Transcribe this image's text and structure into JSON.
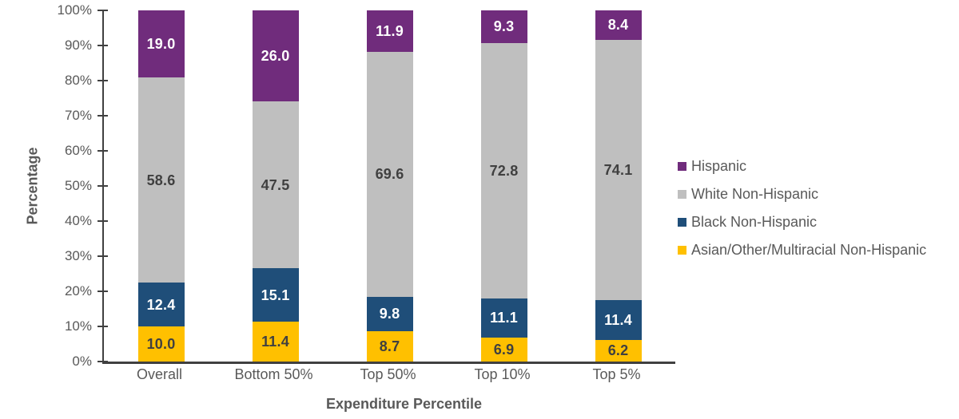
{
  "chart_data": {
    "type": "bar",
    "stacked": true,
    "percent_stacked": true,
    "title": "",
    "xlabel": "Expenditure Percentile",
    "ylabel": "Percentage",
    "ylim": [
      0,
      100
    ],
    "ytick_labels": [
      "0%",
      "10%",
      "20%",
      "30%",
      "40%",
      "50%",
      "60%",
      "70%",
      "80%",
      "90%",
      "100%"
    ],
    "grid": false,
    "legend_position": "right",
    "categories": [
      "Overall",
      "Bottom 50%",
      "Top 50%",
      "Top 10%",
      "Top 5%"
    ],
    "series": [
      {
        "name": "Hispanic",
        "color": "#702C7C",
        "label_color": "#FFFFFF",
        "values": [
          19.0,
          26.0,
          11.9,
          9.3,
          8.4
        ]
      },
      {
        "name": "White Non-Hispanic",
        "color": "#BFBFBF",
        "label_color": "#404040",
        "values": [
          58.6,
          47.5,
          69.6,
          72.8,
          74.1
        ]
      },
      {
        "name": "Black Non-Hispanic",
        "color": "#1F4E79",
        "label_color": "#FFFFFF",
        "values": [
          12.4,
          15.1,
          9.8,
          11.1,
          11.4
        ]
      },
      {
        "name": "Asian/Other/Multiracial Non-Hispanic",
        "color": "#FFC000",
        "label_color": "#404040",
        "values": [
          10.0,
          11.4,
          8.7,
          6.9,
          6.2
        ]
      }
    ],
    "axis_color": "#404040",
    "tick_text_color": "#595959"
  }
}
